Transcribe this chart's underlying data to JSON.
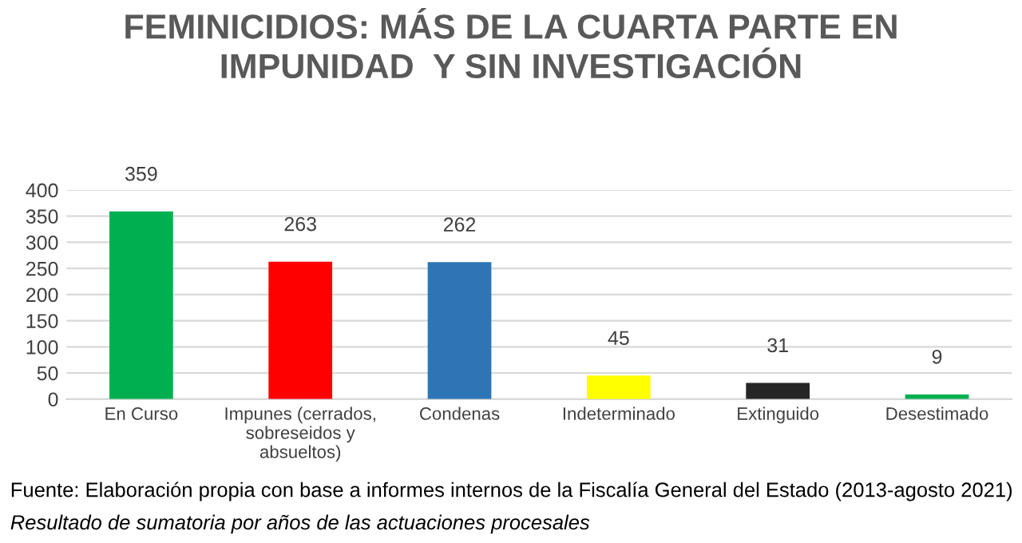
{
  "chart_data": {
    "type": "bar",
    "title": "FEMINICIDIOS: MÁS DE LA CUARTA PARTE EN\nIMPUNIDAD  Y SIN INVESTIGACIÓN",
    "categories": [
      "En Curso",
      "Impunes (cerrados,\nsobreseidos y\nabsueltos)",
      "Condenas",
      "Indeterminado",
      "Extinguido",
      "Desestimado"
    ],
    "values": [
      359,
      263,
      262,
      45,
      31,
      9
    ],
    "colors": [
      "#00b050",
      "#ff0000",
      "#2e75b6",
      "#ffff00",
      "#262626",
      "#00b050"
    ],
    "ylim": [
      0,
      400
    ],
    "yticks": [
      0,
      50,
      100,
      150,
      200,
      250,
      300,
      350,
      400
    ],
    "grid": "y",
    "data_labels": true,
    "legend": false,
    "annotations": [
      "Fuente: Elaboración propia con base a informes internos de la Fiscalía General del Estado (2013-agosto 2021)",
      "Resultado de sumatoria por años de las actuaciones procesales"
    ]
  }
}
